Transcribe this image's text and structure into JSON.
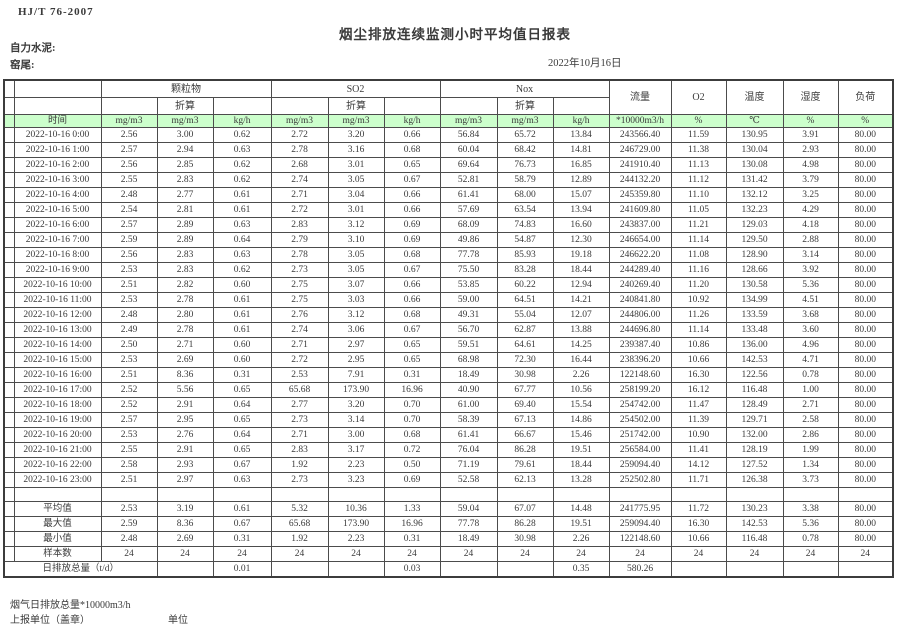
{
  "header": {
    "standard": "HJ/T 76-2007",
    "title": "烟尘排放连续监测小时平均值日报表",
    "company": "自力水泥:",
    "site": "窑尾:",
    "date": "2022年10月16日"
  },
  "table": {
    "groups": {
      "pm": "颗粒物",
      "so2": "SO2",
      "nox": "Nox",
      "converted": "折算",
      "flow": "流量",
      "o2": "O2",
      "temp": "温度",
      "humidity": "湿度",
      "load": "负荷"
    },
    "units": {
      "time": "时间",
      "mgm3": "mg/m3",
      "kgh": "kg/h",
      "flow": "*10000m3/h",
      "pct": "%",
      "temp": "℃"
    },
    "rows": [
      {
        "time": "2022-10-16 0:00",
        "values": [
          "2.56",
          "3.00",
          "0.62",
          "2.72",
          "3.20",
          "0.66",
          "56.84",
          "65.72",
          "13.84",
          "243566.40",
          "11.59",
          "130.95",
          "3.91",
          "80.00"
        ]
      },
      {
        "time": "2022-10-16 1:00",
        "values": [
          "2.57",
          "2.94",
          "0.63",
          "2.78",
          "3.16",
          "0.68",
          "60.04",
          "68.42",
          "14.81",
          "246729.00",
          "11.38",
          "130.04",
          "2.93",
          "80.00"
        ]
      },
      {
        "time": "2022-10-16 2:00",
        "values": [
          "2.56",
          "2.85",
          "0.62",
          "2.68",
          "3.01",
          "0.65",
          "69.64",
          "76.73",
          "16.85",
          "241910.40",
          "11.13",
          "130.08",
          "4.98",
          "80.00"
        ]
      },
      {
        "time": "2022-10-16 3:00",
        "values": [
          "2.55",
          "2.83",
          "0.62",
          "2.74",
          "3.05",
          "0.67",
          "52.81",
          "58.79",
          "12.89",
          "244132.20",
          "11.12",
          "131.42",
          "3.79",
          "80.00"
        ]
      },
      {
        "time": "2022-10-16 4:00",
        "values": [
          "2.48",
          "2.77",
          "0.61",
          "2.71",
          "3.04",
          "0.66",
          "61.41",
          "68.00",
          "15.07",
          "245359.80",
          "11.10",
          "132.12",
          "3.25",
          "80.00"
        ]
      },
      {
        "time": "2022-10-16 5:00",
        "values": [
          "2.54",
          "2.81",
          "0.61",
          "2.72",
          "3.01",
          "0.66",
          "57.69",
          "63.54",
          "13.94",
          "241609.80",
          "11.05",
          "132.23",
          "4.29",
          "80.00"
        ]
      },
      {
        "time": "2022-10-16 6:00",
        "values": [
          "2.57",
          "2.89",
          "0.63",
          "2.83",
          "3.12",
          "0.69",
          "68.09",
          "74.83",
          "16.60",
          "243837.00",
          "11.21",
          "129.03",
          "4.18",
          "80.00"
        ]
      },
      {
        "time": "2022-10-16 7:00",
        "values": [
          "2.59",
          "2.89",
          "0.64",
          "2.79",
          "3.10",
          "0.69",
          "49.86",
          "54.87",
          "12.30",
          "246654.00",
          "11.14",
          "129.50",
          "2.88",
          "80.00"
        ]
      },
      {
        "time": "2022-10-16 8:00",
        "values": [
          "2.56",
          "2.83",
          "0.63",
          "2.78",
          "3.05",
          "0.68",
          "77.78",
          "85.93",
          "19.18",
          "246622.20",
          "11.08",
          "128.90",
          "3.14",
          "80.00"
        ]
      },
      {
        "time": "2022-10-16 9:00",
        "values": [
          "2.53",
          "2.83",
          "0.62",
          "2.73",
          "3.05",
          "0.67",
          "75.50",
          "83.28",
          "18.44",
          "244289.40",
          "11.16",
          "128.66",
          "3.92",
          "80.00"
        ]
      },
      {
        "time": "2022-10-16 10:00",
        "values": [
          "2.51",
          "2.82",
          "0.60",
          "2.75",
          "3.07",
          "0.66",
          "53.85",
          "60.22",
          "12.94",
          "240269.40",
          "11.20",
          "130.58",
          "5.36",
          "80.00"
        ]
      },
      {
        "time": "2022-10-16 11:00",
        "values": [
          "2.53",
          "2.78",
          "0.61",
          "2.75",
          "3.03",
          "0.66",
          "59.00",
          "64.51",
          "14.21",
          "240841.80",
          "10.92",
          "134.99",
          "4.51",
          "80.00"
        ]
      },
      {
        "time": "2022-10-16 12:00",
        "values": [
          "2.48",
          "2.80",
          "0.61",
          "2.76",
          "3.12",
          "0.68",
          "49.31",
          "55.04",
          "12.07",
          "244806.00",
          "11.26",
          "133.59",
          "3.68",
          "80.00"
        ]
      },
      {
        "time": "2022-10-16 13:00",
        "values": [
          "2.49",
          "2.78",
          "0.61",
          "2.74",
          "3.06",
          "0.67",
          "56.70",
          "62.87",
          "13.88",
          "244696.80",
          "11.14",
          "133.48",
          "3.60",
          "80.00"
        ]
      },
      {
        "time": "2022-10-16 14:00",
        "values": [
          "2.50",
          "2.71",
          "0.60",
          "2.71",
          "2.97",
          "0.65",
          "59.51",
          "64.61",
          "14.25",
          "239387.40",
          "10.86",
          "136.00",
          "4.96",
          "80.00"
        ]
      },
      {
        "time": "2022-10-16 15:00",
        "values": [
          "2.53",
          "2.69",
          "0.60",
          "2.72",
          "2.95",
          "0.65",
          "68.98",
          "72.30",
          "16.44",
          "238396.20",
          "10.66",
          "142.53",
          "4.71",
          "80.00"
        ]
      },
      {
        "time": "2022-10-16 16:00",
        "values": [
          "2.51",
          "8.36",
          "0.31",
          "2.53",
          "7.91",
          "0.31",
          "18.49",
          "30.98",
          "2.26",
          "122148.60",
          "16.30",
          "122.56",
          "0.78",
          "80.00"
        ]
      },
      {
        "time": "2022-10-16 17:00",
        "values": [
          "2.52",
          "5.56",
          "0.65",
          "65.68",
          "173.90",
          "16.96",
          "40.90",
          "67.77",
          "10.56",
          "258199.20",
          "16.12",
          "116.48",
          "1.00",
          "80.00"
        ]
      },
      {
        "time": "2022-10-16 18:00",
        "values": [
          "2.52",
          "2.91",
          "0.64",
          "2.77",
          "3.20",
          "0.70",
          "61.00",
          "69.40",
          "15.54",
          "254742.00",
          "11.47",
          "128.49",
          "2.71",
          "80.00"
        ]
      },
      {
        "time": "2022-10-16 19:00",
        "values": [
          "2.57",
          "2.95",
          "0.65",
          "2.73",
          "3.14",
          "0.70",
          "58.39",
          "67.13",
          "14.86",
          "254502.00",
          "11.39",
          "129.71",
          "2.58",
          "80.00"
        ]
      },
      {
        "time": "2022-10-16 20:00",
        "values": [
          "2.53",
          "2.76",
          "0.64",
          "2.71",
          "3.00",
          "0.68",
          "61.41",
          "66.67",
          "15.46",
          "251742.00",
          "10.90",
          "132.00",
          "2.86",
          "80.00"
        ]
      },
      {
        "time": "2022-10-16 21:00",
        "values": [
          "2.55",
          "2.91",
          "0.65",
          "2.83",
          "3.17",
          "0.72",
          "76.04",
          "86.28",
          "19.51",
          "256584.00",
          "11.41",
          "128.19",
          "1.99",
          "80.00"
        ]
      },
      {
        "time": "2022-10-16 22:00",
        "values": [
          "2.58",
          "2.93",
          "0.67",
          "1.92",
          "2.23",
          "0.50",
          "71.19",
          "79.61",
          "18.44",
          "259094.40",
          "14.12",
          "127.52",
          "1.34",
          "80.00"
        ]
      },
      {
        "time": "2022-10-16 23:00",
        "values": [
          "2.51",
          "2.97",
          "0.63",
          "2.73",
          "3.23",
          "0.69",
          "52.58",
          "62.13",
          "13.28",
          "252502.80",
          "11.71",
          "126.38",
          "3.73",
          "80.00"
        ]
      }
    ],
    "summary": [
      {
        "label": "平均值",
        "values": [
          "2.53",
          "3.19",
          "0.61",
          "5.32",
          "10.36",
          "1.33",
          "59.04",
          "67.07",
          "14.48",
          "241775.95",
          "11.72",
          "130.23",
          "3.38",
          "80.00"
        ]
      },
      {
        "label": "最大值",
        "values": [
          "2.59",
          "8.36",
          "0.67",
          "65.68",
          "173.90",
          "16.96",
          "77.78",
          "86.28",
          "19.51",
          "259094.40",
          "16.30",
          "142.53",
          "5.36",
          "80.00"
        ]
      },
      {
        "label": "最小值",
        "values": [
          "2.48",
          "2.69",
          "0.31",
          "1.92",
          "2.23",
          "0.31",
          "18.49",
          "30.98",
          "2.26",
          "122148.60",
          "10.66",
          "116.48",
          "0.78",
          "80.00"
        ]
      },
      {
        "label": "样本数",
        "values": [
          "24",
          "24",
          "24",
          "24",
          "24",
          "24",
          "24",
          "24",
          "24",
          "24",
          "24",
          "24",
          "24",
          "24"
        ]
      }
    ],
    "daily_total": {
      "label": "日排放总量（t/d）",
      "cells": [
        "",
        "0.01",
        "",
        "",
        "0.03",
        "",
        "",
        "0.35",
        "580.26",
        "",
        "",
        "",
        "",
        ""
      ]
    }
  },
  "footer": {
    "flue_total": "烟气日排放总量*10000m3/h",
    "report_unit": "上报单位（盖章）",
    "unit": "单位"
  },
  "colors": {
    "header_green": "#ccffcc",
    "border": "#4c4c4c"
  }
}
